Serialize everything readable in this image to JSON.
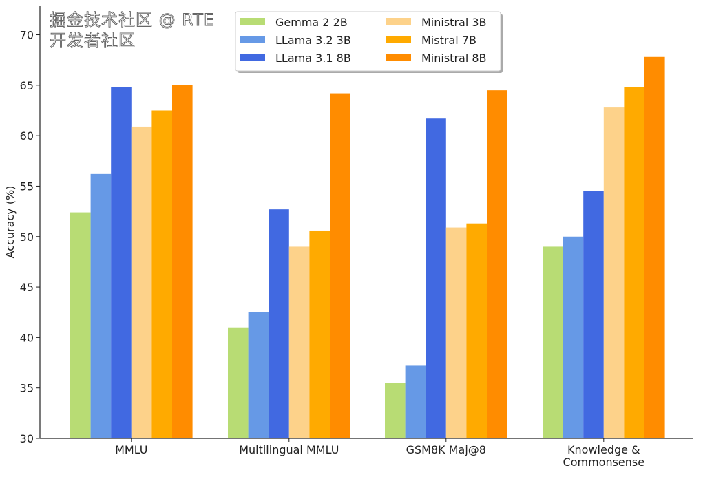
{
  "chart_data": {
    "type": "bar",
    "title": "",
    "xlabel": "",
    "ylabel": "Accuracy (%)",
    "ylim": [
      30,
      72.9
    ],
    "yticks": [
      30,
      35,
      40,
      45,
      50,
      55,
      60,
      65,
      70
    ],
    "categories": [
      "MMLU",
      "Multilingual MMLU",
      "GSM8K Maj@8",
      "Knowledge &\nCommonsense"
    ],
    "legend_position": "top-center",
    "series": [
      {
        "name": "Gemma 2 2B",
        "color": "#b8dc74",
        "values": [
          52.4,
          41.0,
          35.5,
          49.0
        ]
      },
      {
        "name": "LLama 3.2 3B",
        "color": "#6699e6",
        "values": [
          56.2,
          42.5,
          37.2,
          50.0
        ]
      },
      {
        "name": "LLama 3.1 8B",
        "color": "#4169e1",
        "values": [
          64.8,
          52.7,
          61.7,
          54.5
        ]
      },
      {
        "name": "Ministral 3B",
        "color": "#fdd28a",
        "values": [
          60.9,
          49.0,
          50.9,
          62.8
        ]
      },
      {
        "name": "Mistral 7B",
        "color": "#ffaa00",
        "values": [
          62.5,
          50.6,
          51.3,
          64.8
        ]
      },
      {
        "name": "Ministral 8B",
        "color": "#ff8c00",
        "values": [
          65.0,
          64.2,
          64.5,
          67.8
        ]
      }
    ]
  },
  "watermark": "掘金技术社区 @ RTE开发者社区"
}
